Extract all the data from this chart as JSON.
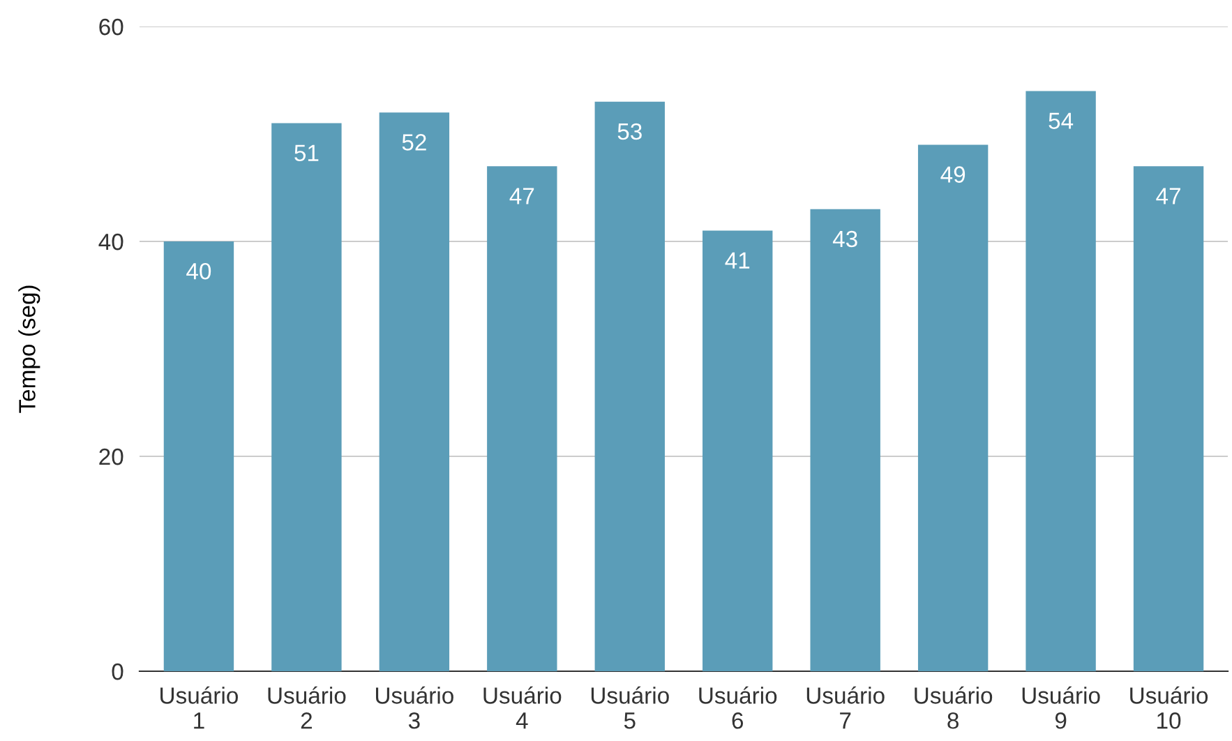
{
  "chart_data": {
    "type": "bar",
    "ylabel": "Tempo (seg)",
    "categories": [
      "Usuário\n1",
      "Usuário\n2",
      "Usuário\n3",
      "Usuário\n4",
      "Usuário\n5",
      "Usuário\n6",
      "Usuário\n7",
      "Usuário\n8",
      "Usuário\n9",
      "Usuário\n10"
    ],
    "values": [
      40,
      51,
      52,
      47,
      53,
      41,
      43,
      49,
      54,
      47
    ],
    "color": "#5b9db8",
    "ylim": [
      0,
      60
    ],
    "yticks": [
      0,
      20,
      40,
      60
    ],
    "grid": "y",
    "data_labels": true
  }
}
